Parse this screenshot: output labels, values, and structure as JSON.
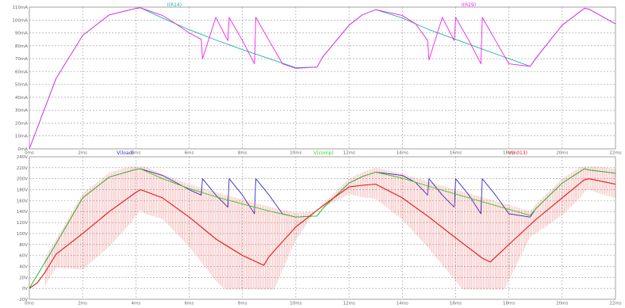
{
  "chart_data": [
    {
      "type": "line",
      "panel": "top",
      "xlim": [
        0,
        22
      ],
      "ylim": [
        0,
        110
      ],
      "xticks": [
        "0ms",
        "2ms",
        "4ms",
        "6ms",
        "8ms",
        "10ms",
        "12ms",
        "14ms",
        "16ms",
        "18ms",
        "20ms",
        "22ms"
      ],
      "yticks": [
        "0mA",
        "10mA",
        "20mA",
        "30mA",
        "40mA",
        "50mA",
        "60mA",
        "70mA",
        "80mA",
        "90mA",
        "100mA",
        "110mA"
      ],
      "grid": true,
      "series": [
        {
          "name": "I(R14)",
          "color": "#20b2aa",
          "x": [
            0,
            1,
            2,
            3,
            4,
            4.17,
            5,
            6,
            7,
            8,
            9,
            10,
            10.8,
            11,
            12,
            12.5,
            13,
            14,
            15,
            16,
            17,
            18,
            18.8,
            19,
            20,
            20.83,
            21,
            22
          ],
          "y": [
            0,
            54.5,
            88,
            104,
            109,
            109.5,
            101.5,
            92.5,
            84.5,
            77,
            70,
            63,
            63.5,
            71,
            96,
            104,
            108,
            101.5,
            92.5,
            85,
            77.5,
            70,
            64,
            70,
            96,
            109,
            108.5,
            97
          ]
        },
        {
          "name": "I(R29)",
          "color": "#ee22ee",
          "x": [
            0,
            1,
            2,
            3,
            4,
            4.17,
            5,
            5.5,
            6,
            6.45,
            6.5,
            7,
            7.45,
            7.5,
            8,
            8.45,
            8.5,
            9,
            9.5,
            10,
            10.8,
            11,
            12,
            12.5,
            13,
            14,
            14.5,
            14.95,
            15,
            15.5,
            15.95,
            16,
            16.5,
            16.95,
            17,
            17.5,
            18,
            18.8,
            19,
            20,
            20.83,
            21,
            22
          ],
          "y": [
            0,
            54.5,
            88,
            104,
            109,
            109.5,
            103.5,
            97,
            90,
            85,
            70,
            102,
            84,
            102,
            84,
            66,
            102,
            84,
            66,
            62.5,
            63.5,
            71,
            96,
            104,
            108,
            103.5,
            97,
            84,
            69,
            102,
            84,
            102,
            84,
            66,
            102,
            84,
            66,
            64,
            70,
            96,
            109,
            108.5,
            97
          ]
        }
      ]
    },
    {
      "type": "line",
      "panel": "bottom",
      "xlim": [
        0,
        22
      ],
      "ylim": [
        -20,
        240
      ],
      "xticks": [
        "0ms",
        "2ms",
        "4ms",
        "6ms",
        "8ms",
        "10ms",
        "12ms",
        "14ms",
        "16ms",
        "18ms",
        "20ms",
        "22ms"
      ],
      "yticks": [
        "-20V",
        "0V",
        "20V",
        "40V",
        "60V",
        "80V",
        "100V",
        "120V",
        "140V",
        "160V",
        "180V",
        "200V",
        "220V",
        "240V"
      ],
      "grid": true,
      "series": [
        {
          "name": "V(load)",
          "color": "#2f2fc8",
          "x": [
            0,
            1,
            2,
            3,
            4,
            4.17,
            5,
            5.5,
            6,
            6.45,
            6.5,
            7,
            7.45,
            7.5,
            8,
            8.45,
            8.5,
            9,
            9.5,
            10,
            10.8,
            11,
            12,
            12.5,
            13,
            14,
            14.5,
            14.95,
            15,
            15.5,
            15.95,
            16,
            16.5,
            16.95,
            17,
            17.5,
            18,
            18.8,
            19,
            20,
            20.83,
            21,
            22
          ],
          "y": [
            0,
            81,
            165,
            203,
            217,
            218,
            206,
            193,
            180,
            170,
            200,
            170,
            148,
            200,
            170,
            136,
            200,
            170,
            136,
            130,
            132,
            145,
            192,
            204,
            212,
            206,
            193,
            170,
            200,
            170,
            148,
            200,
            170,
            136,
            200,
            170,
            136,
            130,
            145,
            192,
            218,
            216,
            210
          ]
        },
        {
          "name": "V(comp)",
          "color": "#22dd22",
          "x": [
            0,
            1,
            2,
            3,
            4,
            4.17,
            5,
            6,
            7,
            8,
            9,
            10,
            10.8,
            11,
            12,
            12.5,
            13,
            14,
            15,
            16,
            17,
            18,
            18.8,
            19,
            20,
            20.83,
            21,
            22
          ],
          "y": [
            0,
            81,
            165,
            203,
            217,
            218,
            200,
            182,
            167,
            154,
            141,
            130,
            132,
            145,
            192,
            204,
            212,
            201,
            186,
            172,
            158,
            144,
            133,
            145,
            192,
            218,
            216,
            210
          ]
        },
        {
          "name": "V(n013)",
          "color": "#e01818",
          "x": [
            0,
            0.3,
            0.6,
            1,
            2,
            3,
            4,
            4.17,
            5,
            6,
            7,
            8,
            8.8,
            9,
            9.5,
            10,
            11,
            12,
            12.5,
            13,
            14,
            15,
            16,
            17,
            17.3,
            18,
            19,
            20,
            20.83,
            21,
            22
          ],
          "y": [
            0,
            10,
            30,
            62,
            100,
            140,
            175,
            180,
            165,
            130,
            90,
            60,
            42,
            58,
            85,
            112,
            150,
            185,
            188,
            190,
            165,
            130,
            92,
            55,
            48,
            80,
            125,
            165,
            198,
            200,
            190
          ]
        }
      ]
    }
  ]
}
